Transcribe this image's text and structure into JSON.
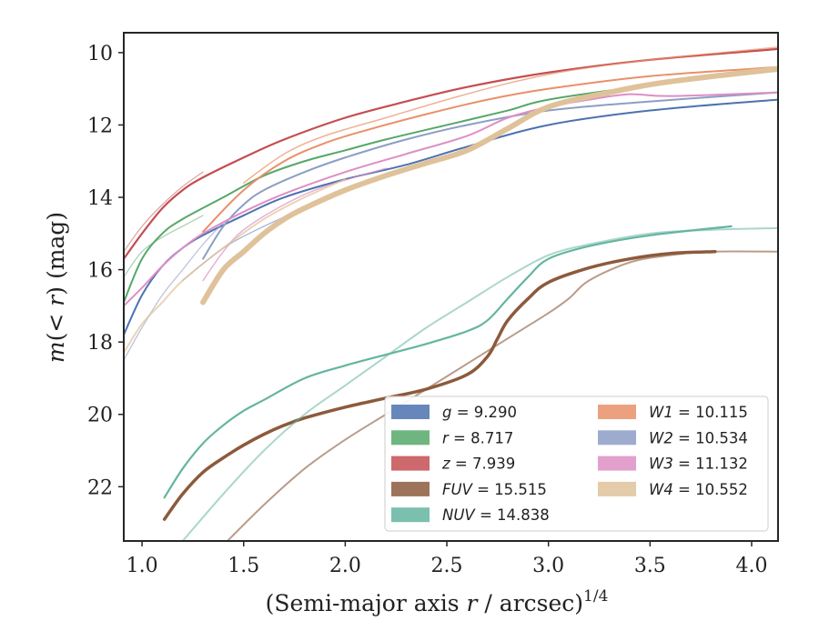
{
  "chart_data": {
    "type": "line",
    "xlabel_main": "(Semi-major axis ",
    "xlabel_var": "r",
    "xlabel_tail": " / arcsec)",
    "xlabel_exp": "1/4",
    "ylabel_pre": "m",
    "ylabel_paren_open": "(< ",
    "ylabel_var": "r",
    "ylabel_paren_close": ")",
    "ylabel_unit": " (mag)",
    "xlim": [
      0.91,
      4.13
    ],
    "ylim": [
      23.5,
      9.45
    ],
    "y_inverted": true,
    "x_ticks": [
      "1.0",
      "1.5",
      "2.0",
      "2.5",
      "3.0",
      "3.5",
      "4.0"
    ],
    "y_ticks": [
      "10",
      "12",
      "14",
      "16",
      "18",
      "20",
      "22"
    ],
    "grid": false,
    "legend_position": "lower-right",
    "series": [
      {
        "key": "g",
        "label": "g",
        "value_text": "= 9.290",
        "color": "#4c72b0",
        "curves": [
          {
            "width": 2,
            "points": [
              [
                0.91,
                17.8
              ],
              [
                1.0,
                16.7
              ],
              [
                1.1,
                15.9
              ],
              [
                1.2,
                15.4
              ],
              [
                1.3,
                15.05
              ],
              [
                1.5,
                14.5
              ],
              [
                1.7,
                14.0
              ],
              [
                2.0,
                13.5
              ],
              [
                2.3,
                13.1
              ],
              [
                2.6,
                12.6
              ],
              [
                3.0,
                12.0
              ],
              [
                3.5,
                11.6
              ],
              [
                4.13,
                11.3
              ]
            ]
          },
          {
            "width": 1.3,
            "opacity": 0.5,
            "points": [
              [
                1.2,
                16.3
              ],
              [
                1.4,
                15.4
              ],
              [
                1.6,
                14.8
              ],
              [
                1.8,
                14.3
              ]
            ]
          }
        ]
      },
      {
        "key": "r",
        "label": "r",
        "value_text": "= 8.717",
        "color": "#55a868",
        "curves": [
          {
            "width": 2,
            "points": [
              [
                0.91,
                16.9
              ],
              [
                1.0,
                15.7
              ],
              [
                1.1,
                15.0
              ],
              [
                1.2,
                14.6
              ],
              [
                1.4,
                14.0
              ],
              [
                1.6,
                13.4
              ],
              [
                1.8,
                13.0
              ],
              [
                2.0,
                12.7
              ],
              [
                2.2,
                12.4
              ],
              [
                2.5,
                12.0
              ],
              [
                2.8,
                11.6
              ],
              [
                3.0,
                11.3
              ],
              [
                3.5,
                10.9
              ],
              [
                4.13,
                10.5
              ]
            ]
          },
          {
            "width": 1.3,
            "opacity": 0.5,
            "points": [
              [
                0.91,
                16.2
              ],
              [
                1.0,
                15.5
              ],
              [
                1.1,
                15.1
              ],
              [
                1.2,
                14.8
              ],
              [
                1.3,
                14.5
              ]
            ]
          }
        ]
      },
      {
        "key": "z",
        "label": "z",
        "value_text": "= 7.939",
        "color": "#c44e52",
        "curves": [
          {
            "width": 2.2,
            "points": [
              [
                0.91,
                15.7
              ],
              [
                1.0,
                15.0
              ],
              [
                1.1,
                14.3
              ],
              [
                1.2,
                13.8
              ],
              [
                1.3,
                13.45
              ],
              [
                1.5,
                12.9
              ],
              [
                1.7,
                12.4
              ],
              [
                2.0,
                11.8
              ],
              [
                2.3,
                11.35
              ],
              [
                2.6,
                10.95
              ],
              [
                3.0,
                10.55
              ],
              [
                3.5,
                10.2
              ],
              [
                4.13,
                9.9
              ]
            ]
          },
          {
            "width": 1.3,
            "opacity": 0.5,
            "points": [
              [
                0.91,
                15.5
              ],
              [
                1.0,
                14.8
              ],
              [
                1.1,
                14.2
              ],
              [
                1.2,
                13.7
              ],
              [
                1.3,
                13.3
              ]
            ]
          }
        ]
      },
      {
        "key": "FUV",
        "label": "FUV",
        "value_text": "= 15.515",
        "color": "#8c5a3c",
        "curves": [
          {
            "width": 3.5,
            "points": [
              [
                1.11,
                22.9
              ],
              [
                1.2,
                22.2
              ],
              [
                1.3,
                21.6
              ],
              [
                1.4,
                21.2
              ],
              [
                1.5,
                20.85
              ],
              [
                1.6,
                20.55
              ],
              [
                1.7,
                20.3
              ],
              [
                1.8,
                20.1
              ],
              [
                2.0,
                19.8
              ],
              [
                2.2,
                19.55
              ],
              [
                2.4,
                19.3
              ],
              [
                2.6,
                18.9
              ],
              [
                2.7,
                18.4
              ],
              [
                2.75,
                17.9
              ],
              [
                2.8,
                17.4
              ],
              [
                2.9,
                16.8
              ],
              [
                3.0,
                16.35
              ],
              [
                3.2,
                15.95
              ],
              [
                3.4,
                15.7
              ],
              [
                3.6,
                15.55
              ],
              [
                3.82,
                15.5
              ]
            ]
          },
          {
            "width": 2,
            "opacity": 0.6,
            "points": [
              [
                1.42,
                23.5
              ],
              [
                1.6,
                22.5
              ],
              [
                1.8,
                21.5
              ],
              [
                2.0,
                20.7
              ],
              [
                2.2,
                20.0
              ],
              [
                2.4,
                19.3
              ],
              [
                2.6,
                18.6
              ],
              [
                2.8,
                17.9
              ],
              [
                3.0,
                17.2
              ],
              [
                3.1,
                16.8
              ],
              [
                3.2,
                16.3
              ],
              [
                3.4,
                15.8
              ],
              [
                3.6,
                15.6
              ],
              [
                3.8,
                15.5
              ],
              [
                4.13,
                15.5
              ]
            ]
          }
        ]
      },
      {
        "key": "NUV",
        "label": "NUV",
        "value_text": "= 14.838",
        "color": "#64b5a0",
        "curves": [
          {
            "width": 2.2,
            "points": [
              [
                1.11,
                22.3
              ],
              [
                1.2,
                21.5
              ],
              [
                1.3,
                20.8
              ],
              [
                1.4,
                20.3
              ],
              [
                1.5,
                19.9
              ],
              [
                1.6,
                19.6
              ],
              [
                1.8,
                19.0
              ],
              [
                2.0,
                18.65
              ],
              [
                2.2,
                18.35
              ],
              [
                2.4,
                18.05
              ],
              [
                2.6,
                17.7
              ],
              [
                2.7,
                17.4
              ],
              [
                2.8,
                16.8
              ],
              [
                2.9,
                16.2
              ],
              [
                3.0,
                15.7
              ],
              [
                3.2,
                15.35
              ],
              [
                3.5,
                15.05
              ],
              [
                3.9,
                14.8
              ]
            ]
          },
          {
            "width": 2,
            "opacity": 0.55,
            "points": [
              [
                1.2,
                23.5
              ],
              [
                1.4,
                22.2
              ],
              [
                1.6,
                21.0
              ],
              [
                1.8,
                20.0
              ],
              [
                2.0,
                19.2
              ],
              [
                2.2,
                18.4
              ],
              [
                2.4,
                17.6
              ],
              [
                2.6,
                16.9
              ],
              [
                2.8,
                16.2
              ],
              [
                3.0,
                15.6
              ],
              [
                3.2,
                15.3
              ],
              [
                3.5,
                15.0
              ],
              [
                3.8,
                14.9
              ],
              [
                4.13,
                14.85
              ]
            ]
          }
        ]
      },
      {
        "key": "W1",
        "label": "W1",
        "value_text": "= 10.115",
        "color": "#e8906a",
        "curves": [
          {
            "width": 2,
            "points": [
              [
                1.3,
                14.95
              ],
              [
                1.5,
                13.8
              ],
              [
                1.7,
                13.0
              ],
              [
                1.9,
                12.5
              ],
              [
                2.1,
                12.15
              ],
              [
                2.4,
                11.7
              ],
              [
                2.7,
                11.3
              ],
              [
                3.0,
                11.0
              ],
              [
                3.5,
                10.65
              ],
              [
                4.13,
                10.4
              ]
            ]
          },
          {
            "width": 1.5,
            "opacity": 0.7,
            "points": [
              [
                1.5,
                13.6
              ],
              [
                1.7,
                12.8
              ],
              [
                1.9,
                12.3
              ],
              [
                2.2,
                11.8
              ],
              [
                2.5,
                11.3
              ],
              [
                2.8,
                10.85
              ],
              [
                3.1,
                10.5
              ],
              [
                3.5,
                10.2
              ],
              [
                4.13,
                9.85
              ]
            ]
          }
        ]
      },
      {
        "key": "W2",
        "label": "W2",
        "value_text": "= 10.534",
        "color": "#8c9ec5",
        "curves": [
          {
            "width": 2,
            "points": [
              [
                1.3,
                15.7
              ],
              [
                1.4,
                14.8
              ],
              [
                1.5,
                14.2
              ],
              [
                1.6,
                13.8
              ],
              [
                1.8,
                13.3
              ],
              [
                2.0,
                12.9
              ],
              [
                2.3,
                12.4
              ],
              [
                2.6,
                12.0
              ],
              [
                3.0,
                11.6
              ],
              [
                3.5,
                11.35
              ],
              [
                4.13,
                11.1
              ]
            ]
          },
          {
            "width": 1.3,
            "opacity": 0.6,
            "points": [
              [
                0.91,
                18.5
              ],
              [
                1.0,
                17.6
              ],
              [
                1.1,
                16.7
              ],
              [
                1.2,
                16.0
              ],
              [
                1.3,
                15.3
              ],
              [
                1.4,
                14.7
              ]
            ]
          }
        ]
      },
      {
        "key": "W3",
        "label": "W3",
        "value_text": "= 11.132",
        "color": "#dd8fc4",
        "curves": [
          {
            "width": 2,
            "points": [
              [
                0.91,
                17.0
              ],
              [
                1.0,
                16.5
              ],
              [
                1.1,
                15.9
              ],
              [
                1.2,
                15.4
              ],
              [
                1.3,
                15.0
              ],
              [
                1.5,
                14.4
              ],
              [
                1.7,
                13.9
              ],
              [
                2.0,
                13.3
              ],
              [
                2.3,
                12.8
              ],
              [
                2.6,
                12.3
              ],
              [
                2.8,
                11.8
              ],
              [
                3.0,
                11.5
              ],
              [
                3.2,
                11.3
              ],
              [
                3.4,
                11.15
              ],
              [
                3.6,
                11.2
              ],
              [
                4.13,
                11.1
              ]
            ]
          },
          {
            "width": 1.5,
            "opacity": 0.7,
            "points": [
              [
                1.3,
                16.3
              ],
              [
                1.4,
                15.5
              ],
              [
                1.5,
                14.9
              ],
              [
                1.7,
                14.2
              ],
              [
                1.9,
                13.7
              ],
              [
                2.2,
                13.2
              ]
            ]
          }
        ]
      },
      {
        "key": "W4",
        "label": "W4",
        "value_text": "= 10.552",
        "color": "#dfc29a",
        "curves": [
          {
            "width": 6,
            "points": [
              [
                1.3,
                16.9
              ],
              [
                1.4,
                16.0
              ],
              [
                1.5,
                15.5
              ],
              [
                1.6,
                15.0
              ],
              [
                1.7,
                14.6
              ],
              [
                1.8,
                14.3
              ],
              [
                2.0,
                13.8
              ],
              [
                2.2,
                13.4
              ],
              [
                2.4,
                13.05
              ],
              [
                2.6,
                12.7
              ],
              [
                2.8,
                12.1
              ],
              [
                3.0,
                11.5
              ],
              [
                3.3,
                11.1
              ],
              [
                3.6,
                10.8
              ],
              [
                4.13,
                10.45
              ]
            ]
          },
          {
            "width": 2,
            "opacity": 0.7,
            "points": [
              [
                0.91,
                18.3
              ],
              [
                1.0,
                17.5
              ],
              [
                1.1,
                16.9
              ],
              [
                1.2,
                16.3
              ],
              [
                1.4,
                15.4
              ],
              [
                1.6,
                14.6
              ],
              [
                1.8,
                14.0
              ],
              [
                2.0,
                13.5
              ]
            ]
          }
        ]
      }
    ]
  }
}
